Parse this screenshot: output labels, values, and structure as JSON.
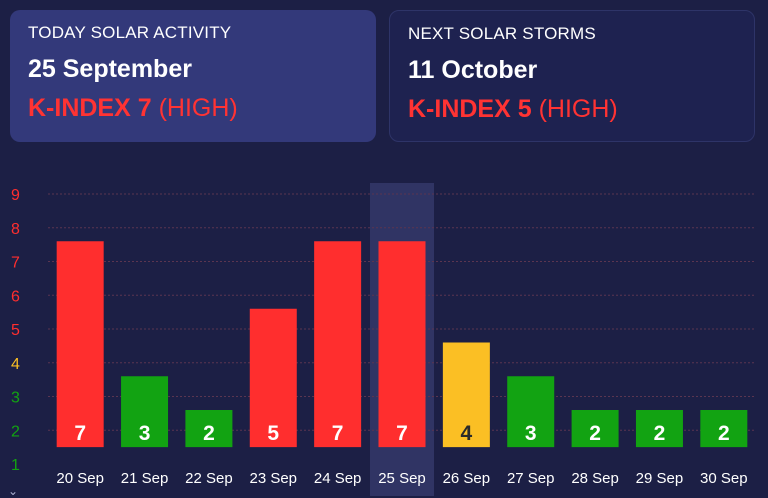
{
  "cards": {
    "today": {
      "label": "TODAY SOLAR ACTIVITY",
      "date": "25 September",
      "kindex_label": "K-INDEX 7",
      "level": "(HIGH)"
    },
    "next": {
      "label": "NEXT SOLAR STORMS",
      "date": "11 October",
      "kindex_label": "K-INDEX 5",
      "level": "(HIGH)"
    }
  },
  "colors": {
    "high": "#ff2e2e",
    "moderate": "#fbbf24",
    "low": "#12a312",
    "highlight_column": "#34386a"
  },
  "chart_data": {
    "type": "bar",
    "categories": [
      "20 Sep",
      "21 Sep",
      "22 Sep",
      "23 Sep",
      "24 Sep",
      "25 Sep",
      "26 Sep",
      "27 Sep",
      "28 Sep",
      "29 Sep",
      "30 Sep"
    ],
    "values": [
      7,
      3,
      2,
      5,
      7,
      7,
      4,
      3,
      2,
      2,
      2
    ],
    "y_ticks": [
      "1",
      "2",
      "3",
      "4",
      "5",
      "6",
      "7",
      "8",
      "9"
    ],
    "ylim": [
      1,
      9
    ],
    "highlight_category": "25 Sep",
    "grid": true
  }
}
